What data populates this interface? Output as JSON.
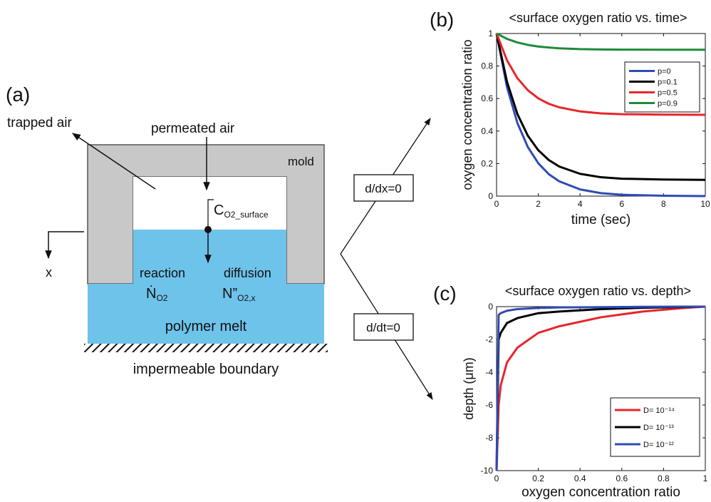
{
  "diagram": {
    "panel_label": "(a)",
    "trapped_air": "trapped air",
    "permeated_air": "permeated air",
    "mold": "mold",
    "surface_conc": {
      "base": "C",
      "sub": "O2_surface"
    },
    "reaction": "reaction",
    "reaction_symbol": {
      "base": "Ṅ",
      "sub": "O2"
    },
    "diffusion": "diffusion",
    "diffusion_symbol": {
      "base": "N”",
      "sub": "O2,x"
    },
    "polymer_melt": "polymer melt",
    "boundary": "impermeable boundary",
    "x_axis": "x",
    "steady_space": "d/dx=0",
    "steady_time": "d/dt=0"
  },
  "chart_data": [
    {
      "type": "line",
      "panel_label": "(b)",
      "title": "<surface oxygen ratio vs. time>",
      "x_label": "time (sec)",
      "y_label": "oxygen concentration ratio",
      "x": [
        0,
        0.5,
        1,
        1.5,
        2,
        2.5,
        3,
        4,
        5,
        6,
        8,
        10
      ],
      "series": [
        {
          "name": "p=0",
          "color": "#2f4bb5",
          "values": [
            1,
            0.67,
            0.449,
            0.301,
            0.202,
            0.135,
            0.091,
            0.041,
            0.018,
            0.008,
            0.002,
            0
          ]
        },
        {
          "name": "p=0.1",
          "color": "#000000",
          "values": [
            1,
            0.703,
            0.504,
            0.371,
            0.282,
            0.222,
            0.182,
            0.137,
            0.116,
            0.107,
            0.102,
            0.1
          ]
        },
        {
          "name": "p=0.5",
          "color": "#e8252a",
          "values": [
            1,
            0.835,
            0.725,
            0.651,
            0.601,
            0.568,
            0.546,
            0.521,
            0.509,
            0.504,
            0.501,
            0.5
          ]
        },
        {
          "name": "p=0.9",
          "color": "#1f8a3a",
          "values": [
            1,
            0.967,
            0.945,
            0.93,
            0.92,
            0.914,
            0.909,
            0.904,
            0.902,
            0.901,
            0.9,
            0.9
          ]
        }
      ],
      "xlim": [
        0,
        10
      ],
      "xticks": [
        0,
        2,
        4,
        6,
        8,
        10
      ],
      "ylim": [
        0,
        1
      ],
      "yticks": [
        0,
        0.2,
        0.4,
        0.6,
        0.8,
        1
      ],
      "legend": "upper right"
    },
    {
      "type": "line",
      "panel_label": "(c)",
      "title": "<surface oxygen ratio vs. depth>",
      "x_label": "oxygen concentration ratio",
      "y_label": "depth (μm)",
      "x": [
        0,
        0.01,
        0.02,
        0.05,
        0.1,
        0.2,
        0.3,
        0.5,
        0.7,
        0.9,
        1
      ],
      "series": [
        {
          "name": "D= 10⁻¹⁴",
          "color": "#e8252a",
          "values": [
            -10,
            -6,
            -4.8,
            -3.4,
            -2.5,
            -1.6,
            -1.2,
            -0.65,
            -0.3,
            -0.08,
            0
          ]
        },
        {
          "name": "D= 10⁻¹³",
          "color": "#000000",
          "values": [
            -10,
            -2,
            -1.6,
            -1,
            -0.7,
            -0.4,
            -0.3,
            -0.15,
            -0.07,
            -0.02,
            0
          ]
        },
        {
          "name": "D= 10⁻¹²",
          "color": "#2f4bb5",
          "values": [
            -10,
            -0.5,
            -0.4,
            -0.25,
            -0.15,
            -0.08,
            -0.05,
            -0.03,
            -0.01,
            0,
            0
          ]
        }
      ],
      "xlim": [
        0,
        1
      ],
      "xticks": [
        0,
        0.2,
        0.4,
        0.6,
        0.8,
        1
      ],
      "ylim": [
        -10,
        0
      ],
      "yticks": [
        -10,
        -8,
        -6,
        -4,
        -2,
        0
      ],
      "legend": "lower right"
    }
  ]
}
